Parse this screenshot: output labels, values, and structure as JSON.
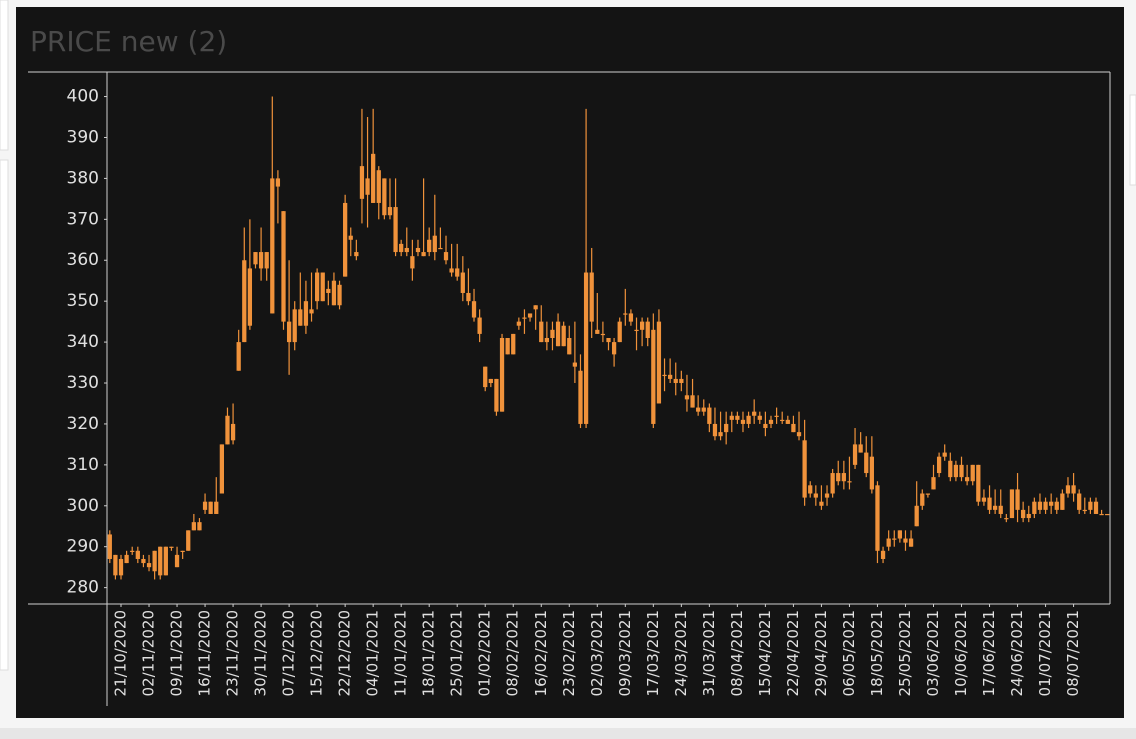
{
  "chart_data": {
    "type": "candlestick",
    "title": "PRICE new (2)",
    "color": "#f0923b",
    "ylim": [
      276,
      406
    ],
    "yticks": [
      280,
      290,
      300,
      310,
      320,
      330,
      340,
      350,
      360,
      370,
      380,
      390,
      400
    ],
    "categories": [
      null,
      null,
      "21/10/2020",
      null,
      null,
      null,
      null,
      "02/11/2020",
      null,
      null,
      null,
      null,
      "09/11/2020",
      null,
      null,
      null,
      null,
      "16/11/2020",
      null,
      null,
      null,
      null,
      "23/11/2020",
      null,
      null,
      null,
      null,
      "30/11/2020",
      null,
      null,
      null,
      null,
      "07/12/2020",
      null,
      null,
      null,
      null,
      "15/12/2020",
      null,
      null,
      null,
      null,
      "22/12/2020",
      null,
      null,
      null,
      null,
      "04/01/2021",
      null,
      null,
      null,
      null,
      "11/01/2021",
      null,
      null,
      null,
      null,
      "18/01/2021",
      null,
      null,
      null,
      null,
      "25/01/2021",
      null,
      null,
      null,
      null,
      "01/02/2021",
      null,
      null,
      null,
      null,
      "08/02/2021",
      null,
      null,
      null,
      null,
      "16/02/2021",
      null,
      null,
      null,
      null,
      "23/02/2021",
      null,
      null,
      null,
      null,
      "02/03/2021",
      null,
      null,
      null,
      null,
      "09/03/2021",
      null,
      null,
      null,
      null,
      "17/03/2021",
      null,
      null,
      null,
      null,
      "24/03/2021",
      null,
      null,
      null,
      null,
      "31/03/2021",
      null,
      null,
      null,
      null,
      "08/04/2021",
      null,
      null,
      null,
      null,
      "15/04/2021",
      null,
      null,
      null,
      null,
      "22/04/2021",
      null,
      null,
      null,
      null,
      "29/04/2021",
      null,
      null,
      null,
      null,
      "06/05/2021",
      null,
      null,
      null,
      null,
      "18/05/2021",
      null,
      null,
      null,
      null,
      "25/05/2021",
      null,
      null,
      null,
      null,
      "03/06/2021",
      null,
      null,
      null,
      null,
      "10/06/2021",
      null,
      null,
      null,
      null,
      "17/06/2021",
      null,
      null,
      null,
      null,
      "24/06/2021",
      null,
      null,
      null,
      null,
      "01/07/2021",
      null,
      null,
      null,
      null,
      "08/07/2021",
      null,
      null,
      null,
      null,
      null,
      null
    ],
    "open": [
      293,
      288,
      283,
      288,
      289,
      289,
      287,
      286,
      284,
      290,
      283,
      290,
      285,
      289,
      289,
      294,
      296,
      299,
      298,
      301,
      303,
      315,
      316,
      333,
      340,
      358,
      359,
      362,
      358,
      347,
      380,
      372,
      345,
      340,
      348,
      344,
      348,
      350,
      357,
      352,
      355,
      349,
      356,
      366,
      361,
      375,
      380,
      386,
      374,
      380,
      371,
      373,
      362,
      362,
      358,
      362,
      362,
      362,
      366,
      363,
      362,
      358,
      358,
      352,
      352,
      350,
      346,
      334,
      330,
      331,
      323,
      341,
      337,
      345,
      346,
      346,
      348,
      345,
      340,
      341,
      345,
      339,
      341,
      335,
      333,
      320,
      357,
      343,
      342,
      340,
      340,
      340,
      347,
      347,
      343,
      343,
      345,
      343,
      345,
      332,
      332,
      331,
      330,
      326,
      327,
      324,
      323,
      324,
      320,
      317,
      318,
      322,
      322,
      321,
      320,
      322,
      321,
      319,
      320,
      322,
      321,
      321,
      320,
      318,
      316,
      305,
      303,
      301,
      302,
      303,
      308,
      306,
      306,
      310,
      315,
      313,
      312,
      305,
      287,
      290,
      292,
      292,
      291,
      292,
      295,
      300,
      303,
      304,
      308,
      313,
      311,
      307,
      310,
      307,
      306,
      310,
      301,
      302,
      299,
      300,
      297,
      297,
      304,
      299,
      297,
      298,
      301,
      299,
      300,
      301,
      299,
      303,
      305,
      303,
      299,
      299,
      301,
      298,
      298
    ],
    "high": [
      294,
      288,
      288,
      289,
      290,
      290,
      288,
      288,
      289,
      290,
      290,
      290,
      290,
      289,
      294,
      298,
      297,
      303,
      301,
      307,
      315,
      324,
      325,
      343,
      368,
      370,
      362,
      368,
      362,
      400,
      382,
      372,
      360,
      350,
      357,
      355,
      357,
      358,
      357,
      355,
      357,
      355,
      376,
      368,
      365,
      397,
      395,
      397,
      383,
      380,
      380,
      380,
      365,
      368,
      365,
      365,
      380,
      368,
      376,
      368,
      366,
      364,
      364,
      361,
      358,
      353,
      348,
      334,
      331,
      331,
      342,
      341,
      342,
      346,
      348,
      347,
      349,
      349,
      345,
      345,
      347,
      345,
      344,
      345,
      337,
      397,
      363,
      352,
      345,
      341,
      341,
      346,
      353,
      348,
      346,
      346,
      346,
      347,
      348,
      336,
      336,
      335,
      333,
      332,
      331,
      327,
      326,
      325,
      324,
      323,
      323,
      323,
      323,
      323,
      323,
      326,
      323,
      323,
      322,
      324,
      323,
      322,
      322,
      323,
      321,
      306,
      305,
      305,
      305,
      309,
      311,
      311,
      312,
      319,
      318,
      317,
      317,
      306,
      290,
      294,
      294,
      294,
      294,
      294,
      306,
      304,
      303,
      310,
      313,
      315,
      313,
      311,
      312,
      310,
      310,
      310,
      304,
      305,
      304,
      304,
      298,
      304,
      308,
      301,
      300,
      302,
      303,
      302,
      303,
      302,
      304,
      307,
      308,
      304,
      302,
      302,
      302,
      299,
      298
    ],
    "low": [
      286,
      282,
      282,
      286,
      288,
      286,
      285,
      284,
      282,
      282,
      283,
      289,
      285,
      287,
      289,
      294,
      294,
      298,
      298,
      298,
      303,
      315,
      315,
      333,
      340,
      343,
      358,
      355,
      355,
      347,
      369,
      343,
      332,
      338,
      344,
      342,
      345,
      348,
      350,
      349,
      349,
      348,
      356,
      361,
      360,
      369,
      368,
      374,
      370,
      370,
      370,
      361,
      361,
      361,
      355,
      361,
      361,
      361,
      360,
      363,
      359,
      356,
      355,
      350,
      349,
      345,
      340,
      328,
      329,
      322,
      323,
      337,
      337,
      343,
      342,
      345,
      343,
      340,
      338,
      338,
      339,
      339,
      337,
      330,
      319,
      319,
      341,
      342,
      340,
      338,
      334,
      340,
      344,
      344,
      338,
      339,
      339,
      319,
      325,
      328,
      330,
      327,
      328,
      323,
      324,
      322,
      322,
      318,
      316,
      316,
      315,
      318,
      320,
      318,
      319,
      320,
      320,
      317,
      319,
      320,
      320,
      320,
      318,
      316,
      300,
      302,
      300,
      299,
      300,
      302,
      305,
      304,
      304,
      309,
      313,
      307,
      303,
      286,
      286,
      289,
      290,
      291,
      289,
      290,
      295,
      299,
      302,
      304,
      307,
      311,
      306,
      306,
      306,
      305,
      305,
      300,
      300,
      298,
      298,
      297,
      296,
      297,
      296,
      296,
      296,
      297,
      298,
      298,
      298,
      298,
      299,
      302,
      301,
      298,
      298,
      298,
      298,
      298,
      298
    ],
    "close": [
      287,
      283,
      287,
      286,
      289,
      287,
      286,
      285,
      289,
      283,
      290,
      290,
      288,
      289,
      294,
      296,
      294,
      301,
      301,
      298,
      315,
      322,
      320,
      340,
      360,
      344,
      362,
      358,
      362,
      380,
      378,
      345,
      340,
      348,
      344,
      350,
      347,
      357,
      350,
      353,
      349,
      354,
      374,
      365,
      362,
      383,
      376,
      374,
      382,
      371,
      373,
      362,
      364,
      363,
      361,
      363,
      361,
      365,
      362,
      363,
      360,
      357,
      356,
      357,
      350,
      346,
      342,
      329,
      331,
      323,
      341,
      337,
      342,
      344,
      346,
      347,
      349,
      340,
      341,
      343,
      339,
      344,
      337,
      334,
      320,
      357,
      345,
      342,
      342,
      341,
      337,
      345,
      347,
      345,
      343,
      345,
      341,
      320,
      325,
      332,
      331,
      330,
      331,
      327,
      324,
      323,
      324,
      320,
      317,
      318,
      320,
      321,
      321,
      320,
      322,
      323,
      322,
      320,
      321,
      322,
      321,
      320,
      318,
      317,
      302,
      303,
      302,
      300,
      303,
      308,
      306,
      308,
      306,
      315,
      313,
      308,
      304,
      289,
      289,
      292,
      292,
      294,
      292,
      290,
      300,
      303,
      303,
      307,
      312,
      312,
      307,
      310,
      307,
      306,
      310,
      301,
      302,
      299,
      300,
      298,
      297,
      304,
      299,
      297,
      298,
      301,
      299,
      301,
      301,
      299,
      303,
      305,
      303,
      299,
      299,
      301,
      298,
      298,
      298
    ]
  }
}
